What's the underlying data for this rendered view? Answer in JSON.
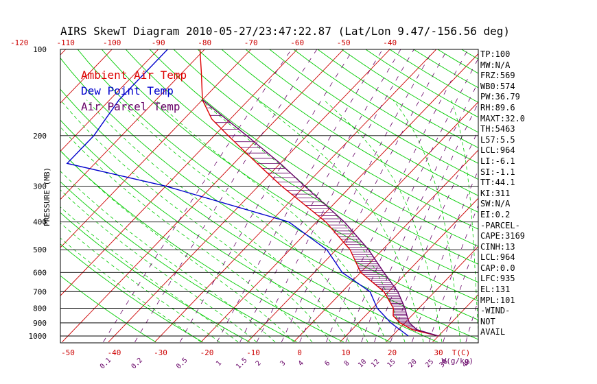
{
  "title": "AIRS SkewT Diagram 2010-05-27/23:47:22.87 (Lat/Lon 9.47/-156.56 deg)",
  "colors": {
    "ambient": "#dd0000",
    "dew": "#0000cc",
    "parcel": "#660066",
    "isotherm": "#cc0000",
    "adiabat": "#00cc00",
    "mixing": "#660066"
  },
  "legend": [
    {
      "label": "Ambient Air Temp",
      "color": "#dd0000"
    },
    {
      "label": "Dew Point Temp",
      "color": "#0000cc"
    },
    {
      "label": "Air Parcel Temp",
      "color": "#660066"
    }
  ],
  "indices": [
    "TP:100",
    "MW:N/A",
    "FRZ:569",
    "WB0:574",
    "PW:36.79",
    "RH:89.6",
    "MAXT:32.0",
    "TH:5463",
    "L57:5.5",
    "LCL:964",
    "LI:-6.1",
    "SI:-1.1",
    "TT:44.1",
    "KI:311",
    "SW:N/A",
    "EI:0.2",
    "-PARCEL-",
    "CAPE:3169",
    "CINH:13",
    "LCL:964",
    "CAP:0.0",
    "LFC:935",
    "EL:131",
    "MPL:101",
    "-WIND-",
    " NOT",
    " AVAIL"
  ],
  "chart_data": {
    "type": "line",
    "title": "AIRS SkewT Diagram 2010-05-27/23:47:22.87 (Lat/Lon 9.47/-156.56 deg)",
    "ylabel": "PRESSURE (MB)",
    "xlabel": "T(C)",
    "mixing_ratio_label": "W(g/kg)",
    "y_scale": "log",
    "pressure_ticks": [
      100,
      200,
      300,
      400,
      500,
      600,
      700,
      800,
      900,
      1000
    ],
    "bottom_temp_ticks": [
      -50,
      -40,
      -30,
      -20,
      -10,
      0,
      10,
      20,
      30
    ],
    "top_temp_ticks": [
      -120,
      -110,
      -100,
      -90,
      -80,
      -70,
      -60,
      -50,
      -40
    ],
    "mixing_ratio_ticks": [
      "0.1",
      "0.2",
      "0.5",
      "1",
      "1.5",
      "2",
      "3",
      "4",
      "6",
      "8",
      "10",
      "12",
      "15",
      "20",
      "25",
      "30",
      "40"
    ],
    "T_label": "T(C)",
    "series": [
      {
        "name": "Ambient Air Temp",
        "pressure": [
          100,
          120,
          150,
          175,
          200,
          250,
          300,
          400,
          500,
          600,
          700,
          800,
          850,
          900,
          950,
          1000
        ],
        "values": [
          -81,
          -76,
          -70,
          -64,
          -57,
          -45,
          -35,
          -18,
          -7,
          0,
          9,
          14.5,
          16,
          19,
          23,
          30
        ]
      },
      {
        "name": "Dew Point Temp",
        "pressure": [
          100,
          150,
          200,
          250,
          300,
          400,
          500,
          600,
          700,
          800,
          900,
          1000
        ],
        "values": [
          -88,
          -88,
          -86,
          -86,
          -60,
          -26,
          -12,
          -4,
          6,
          11,
          17,
          23.5
        ]
      },
      {
        "name": "Air Parcel Temp",
        "pressure": [
          150,
          200,
          250,
          300,
          400,
          500,
          600,
          700,
          800,
          850,
          900,
          950,
          1000
        ],
        "values": [
          -70,
          -53,
          -40,
          -30,
          -14,
          -3,
          5,
          12,
          17,
          19,
          21,
          24,
          30
        ]
      }
    ]
  }
}
